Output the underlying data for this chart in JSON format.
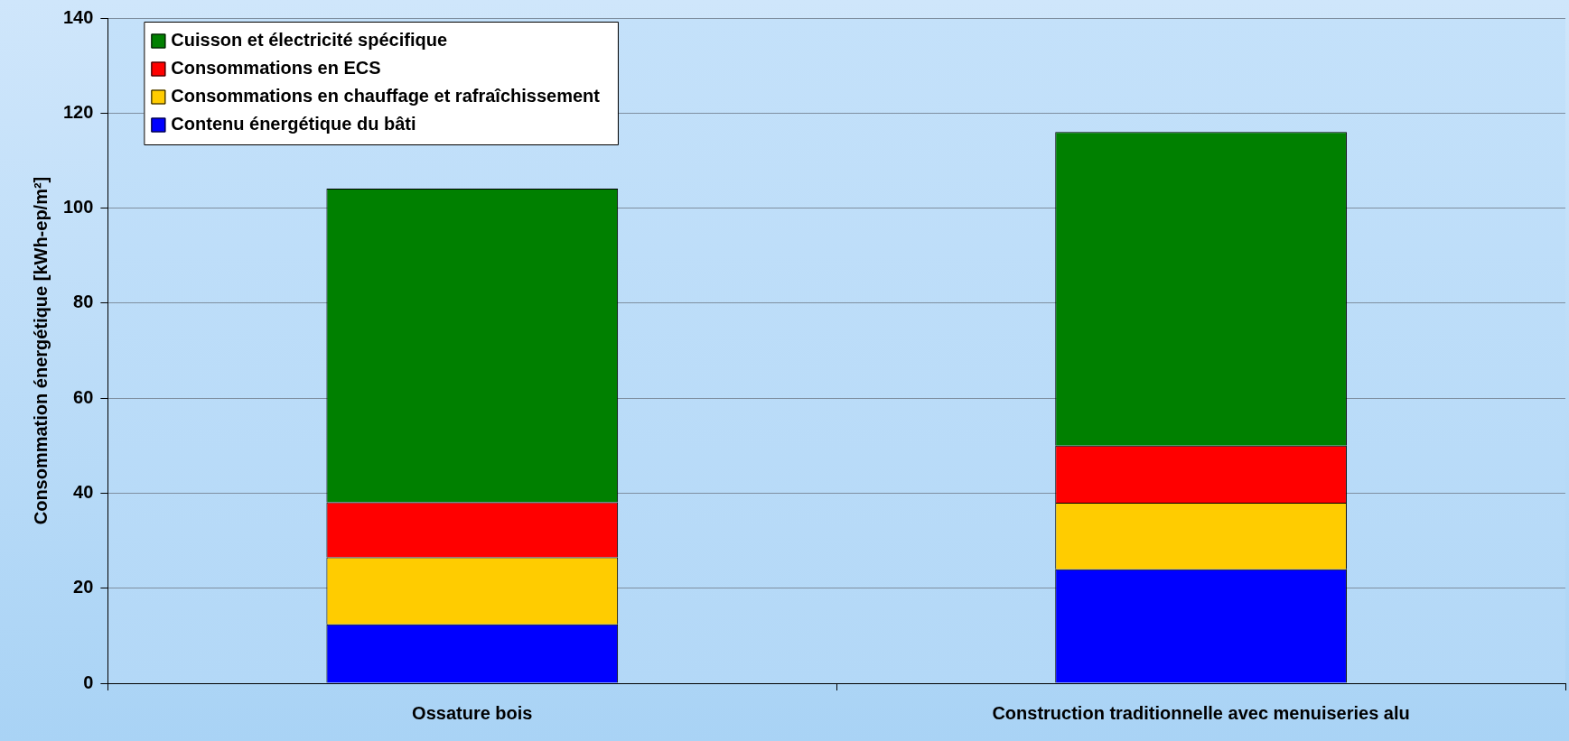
{
  "chart_data": {
    "type": "bar",
    "stacked": true,
    "ylabel": "Consommation énergétique [kWh-ep/m²]",
    "categories": [
      "Ossature bois",
      "Construction traditionnelle avec menuiseries alu"
    ],
    "series": [
      {
        "name": "Contenu énergétique du bâti",
        "color": "#0000ff",
        "values": [
          12.4,
          24
        ]
      },
      {
        "name": "Consommations en chauffage et rafraîchissement",
        "color": "#ffcc00",
        "values": [
          14.1,
          14
        ]
      },
      {
        "name": "Consommations en ECS",
        "color": "#ff0000",
        "values": [
          11.6,
          12
        ]
      },
      {
        "name": "Cuisson et électricité spécifique",
        "color": "#008000",
        "values": [
          66,
          66
        ]
      }
    ],
    "ylim": [
      0,
      140
    ],
    "yticks": [
      0,
      20,
      40,
      60,
      80,
      100,
      120,
      140
    ],
    "grid": "y",
    "legend": "top left"
  }
}
